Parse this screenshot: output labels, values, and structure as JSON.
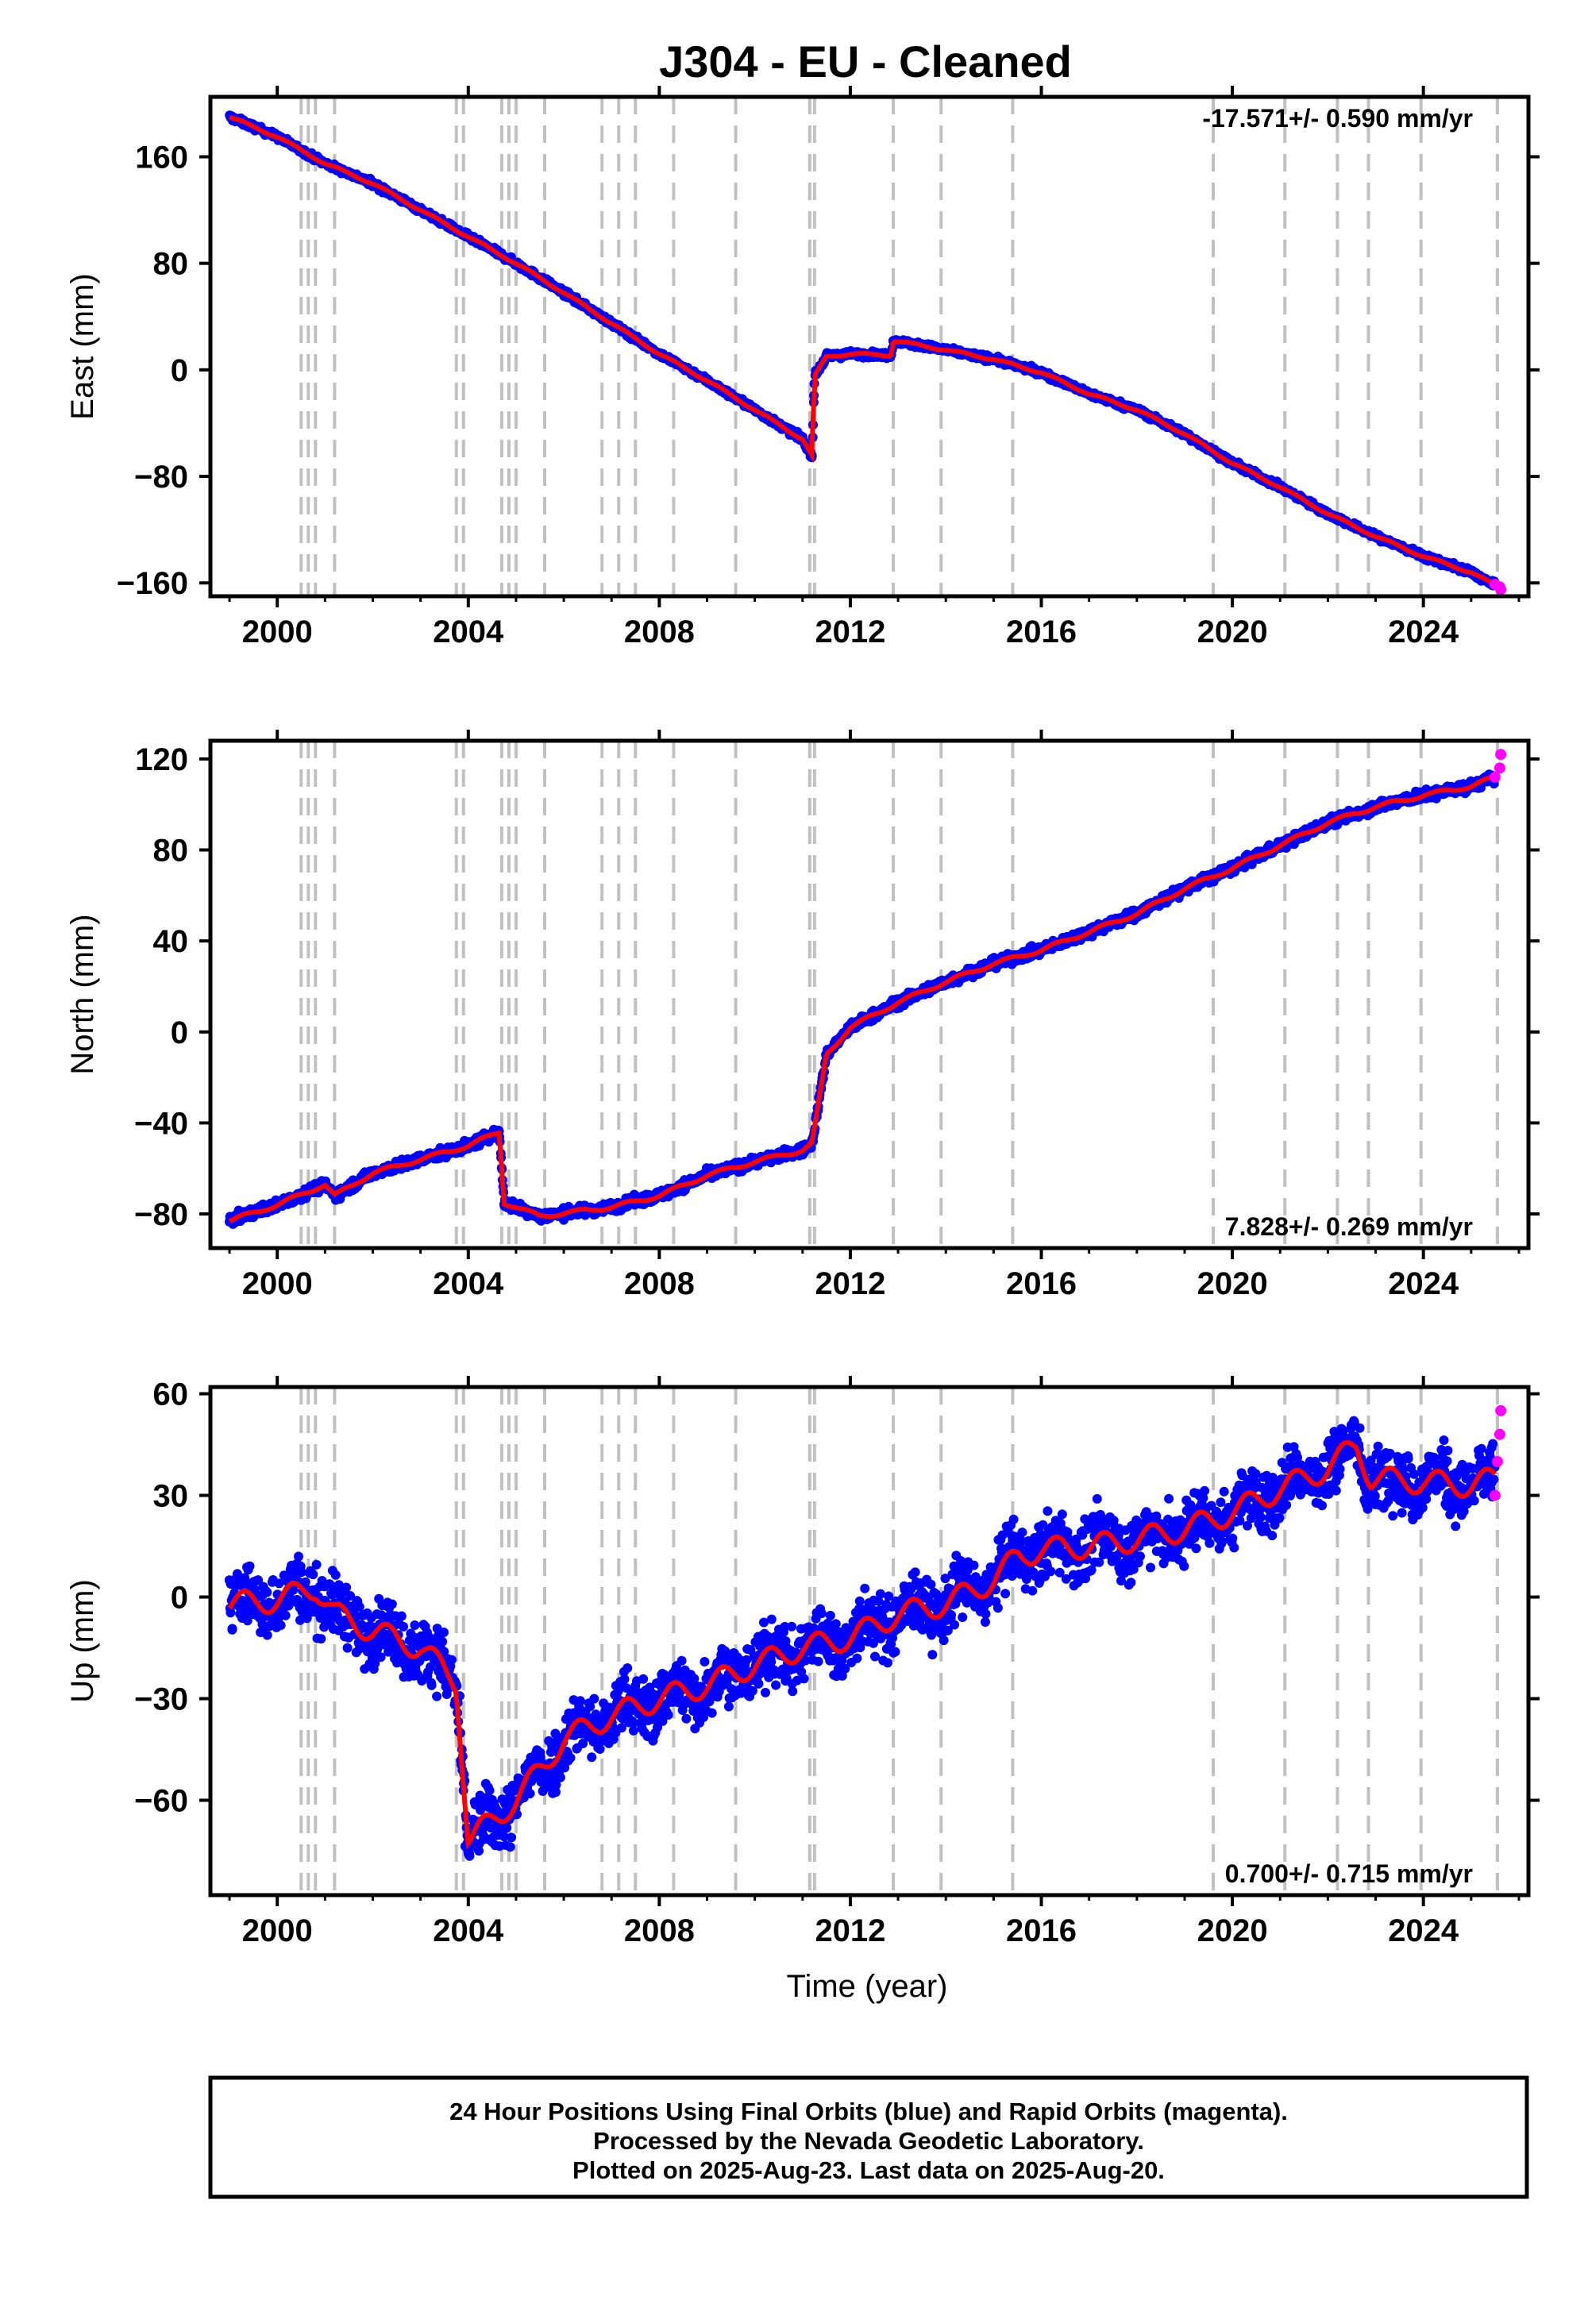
{
  "title": "J304  - EU - Cleaned",
  "footer": {
    "lines": [
      "24 Hour Positions Using Final Orbits (blue) and Rapid Orbits (magenta).",
      "Processed by the Nevada Geodetic Laboratory.",
      "Plotted on 2025-Aug-23. Last data on 2025-Aug-20."
    ]
  },
  "colors": {
    "final_orbits": "#0000ff",
    "rapid_orbits": "#ff00ff",
    "model": "#ff0000",
    "event_lines": "#c0c0c0",
    "frame": "#000000"
  },
  "chart_data": [
    {
      "type": "scatter",
      "ylabel": "East (mm)",
      "xlabel": "",
      "xlim": [
        1998.6,
        2026.2
      ],
      "ylim": [
        -170,
        205
      ],
      "xticks": [
        "2000",
        "2004",
        "2008",
        "2012",
        "2016",
        "2020",
        "2024"
      ],
      "yticks": [
        "160",
        "80",
        "0",
        "−80",
        "−160"
      ],
      "rate_annotation": "-17.571+/- 0.590 mm/yr",
      "rate_position": "top-right",
      "event_lines_year": [
        2000.5,
        2000.65,
        2000.8,
        2001.2,
        2003.75,
        2003.9,
        2004.7,
        2004.85,
        2005.0,
        2005.6,
        2006.8,
        2007.15,
        2007.5,
        2008.3,
        2009.6,
        2011.15,
        2011.25,
        2012.9,
        2013.9,
        2015.4,
        2019.6,
        2021.1,
        2022.2,
        2022.85,
        2023.95,
        2025.55
      ],
      "series": [
        {
          "name": "Final Orbits",
          "x": [
            1999.0,
            2000.0,
            2001.0,
            2002.0,
            2003.0,
            2004.0,
            2005.0,
            2006.0,
            2007.0,
            2008.0,
            2009.0,
            2010.0,
            2011.0,
            2011.2,
            2011.25,
            2011.5,
            2012.0,
            2012.85,
            2012.9,
            2014.0,
            2015.0,
            2016.0,
            2017.0,
            2018.0,
            2019.0,
            2020.0,
            2021.0,
            2022.0,
            2023.0,
            2024.0,
            2025.0,
            2025.5
          ],
          "y": [
            190,
            175,
            155,
            140,
            120,
            100,
            80,
            58,
            35,
            12,
            -8,
            -30,
            -52,
            -65,
            -5,
            10,
            12,
            11,
            22,
            15,
            8,
            -2,
            -18,
            -30,
            -48,
            -70,
            -88,
            -108,
            -125,
            -140,
            -152,
            -162
          ]
        },
        {
          "name": "Rapid Orbits",
          "x": [
            2025.5,
            2025.6,
            2025.62
          ],
          "y": [
            -161,
            -163,
            -165
          ]
        }
      ]
    },
    {
      "type": "scatter",
      "ylabel": "North (mm)",
      "xlabel": "",
      "xlim": [
        1998.6,
        2026.2
      ],
      "ylim": [
        -95,
        128
      ],
      "xticks": [
        "2000",
        "2004",
        "2008",
        "2012",
        "2016",
        "2020",
        "2024"
      ],
      "yticks": [
        "120",
        "80",
        "40",
        "0",
        "−40",
        "−80"
      ],
      "rate_annotation": "7.828+/- 0.269 mm/yr",
      "rate_position": "bottom-right",
      "event_lines_year": [
        2000.5,
        2000.65,
        2000.8,
        2001.2,
        2003.75,
        2003.9,
        2004.7,
        2004.85,
        2005.0,
        2005.6,
        2006.8,
        2007.15,
        2007.5,
        2008.3,
        2009.6,
        2011.15,
        2011.25,
        2012.9,
        2013.9,
        2015.4,
        2019.6,
        2021.1,
        2022.2,
        2022.85,
        2023.95,
        2025.55
      ],
      "series": [
        {
          "name": "Final Orbits",
          "x": [
            1999.0,
            2000.0,
            2001.0,
            2001.2,
            2002.0,
            2003.0,
            2004.0,
            2004.65,
            2004.75,
            2005.5,
            2007.0,
            2008.0,
            2009.0,
            2010.0,
            2011.0,
            2011.2,
            2011.5,
            2012.0,
            2013.0,
            2014.0,
            2015.0,
            2016.0,
            2017.0,
            2018.0,
            2019.0,
            2020.0,
            2021.0,
            2022.0,
            2023.0,
            2024.0,
            2025.0,
            2025.5
          ],
          "y": [
            -83,
            -76,
            -67,
            -72,
            -62,
            -56,
            -50,
            -44,
            -75,
            -81,
            -77,
            -72,
            -63,
            -57,
            -52,
            -49,
            -10,
            2,
            13,
            22,
            30,
            36,
            44,
            52,
            63,
            72,
            82,
            92,
            99,
            104,
            108,
            112
          ]
        },
        {
          "name": "Rapid Orbits",
          "x": [
            2025.5,
            2025.6,
            2025.62
          ],
          "y": [
            112,
            116,
            122
          ]
        }
      ]
    },
    {
      "type": "scatter",
      "ylabel": "Up (mm)",
      "xlabel": "Time (year)",
      "xlim": [
        1998.6,
        2026.2
      ],
      "ylim": [
        -88,
        62
      ],
      "xticks": [
        "2000",
        "2004",
        "2008",
        "2012",
        "2016",
        "2020",
        "2024"
      ],
      "yticks": [
        "60",
        "30",
        "0",
        "−30",
        "−60"
      ],
      "rate_annotation": "0.700+/- 0.715 mm/yr",
      "rate_position": "bottom-right",
      "event_lines_year": [
        2000.5,
        2000.65,
        2000.8,
        2001.2,
        2003.75,
        2003.9,
        2004.7,
        2004.85,
        2005.0,
        2005.6,
        2006.8,
        2007.15,
        2007.5,
        2008.3,
        2009.6,
        2011.15,
        2011.25,
        2012.9,
        2013.9,
        2015.4,
        2019.6,
        2021.1,
        2022.2,
        2022.85,
        2023.95,
        2025.55
      ],
      "series": [
        {
          "name": "Final Orbits",
          "x": [
            1999.0,
            2000.0,
            2000.8,
            2001.2,
            2002.0,
            2003.0,
            2003.75,
            2004.0,
            2005.0,
            2006.0,
            2007.0,
            2008.0,
            2009.0,
            2010.0,
            2011.0,
            2012.0,
            2013.0,
            2014.0,
            2015.0,
            2015.5,
            2016.0,
            2017.0,
            2018.0,
            2019.0,
            2020.0,
            2021.0,
            2022.0,
            2022.6,
            2022.9,
            2024.0,
            2025.0,
            2025.5
          ],
          "y": [
            -2,
            -1,
            3,
            -5,
            -10,
            -15,
            -25,
            -72,
            -60,
            -42,
            -35,
            -30,
            -26,
            -20,
            -15,
            -12,
            -5,
            -2,
            5,
            12,
            14,
            15,
            17,
            20,
            25,
            32,
            38,
            45,
            35,
            34,
            33,
            35
          ]
        },
        {
          "name": "Rapid Orbits",
          "x": [
            2025.5,
            2025.55,
            2025.6,
            2025.62
          ],
          "y": [
            30,
            40,
            48,
            55
          ]
        }
      ]
    }
  ]
}
